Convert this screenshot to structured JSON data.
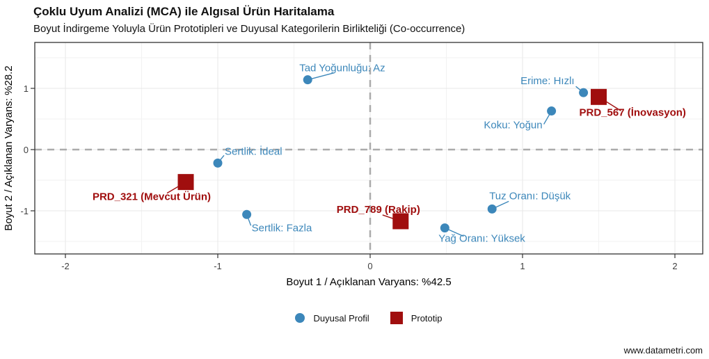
{
  "header": {
    "title": "Çoklu Uyum Analizi (MCA) ile Algısal Ürün Haritalama",
    "subtitle": "Boyut İndirgeme Yoluyla Ürün Prototipleri ve Duyusal Kategorilerin Birlikteliği (Co-occurrence)"
  },
  "watermark": "www.datametri.com",
  "colors": {
    "sensory": "#3c87ba",
    "prototype": "#a00e0e",
    "grid_major": "#e7e7e7",
    "grid_minor": "#f2f2f2",
    "reference_dash": "#ababab",
    "panel_border": "#333333",
    "tick_label": "#404040",
    "axis_title": "#000000"
  },
  "chart_data": {
    "type": "scatter",
    "title": "Çoklu Uyum Analizi (MCA) ile Algısal Ürün Haritalama",
    "subtitle": "Boyut İndirgeme Yoluyla Ürün Prototipleri ve Duyusal Kategorilerin Birlikteliği (Co-occurrence)",
    "xlabel": "Boyut 1 / Açıklanan Varyans: %42.5",
    "ylabel": "Boyut 2 / Açıklanan Varyans: %28.2",
    "xlim": [
      -2.2,
      2.18
    ],
    "ylim": [
      -1.7,
      1.75
    ],
    "xticks": [
      -2,
      -1,
      0,
      1,
      2
    ],
    "yticks": [
      -1,
      0,
      1
    ],
    "grid": {
      "major": true,
      "minor": true
    },
    "reference_lines": {
      "x": 0,
      "y": 0,
      "style": "dashed"
    },
    "legend_position": "bottom",
    "series": [
      {
        "name": "Duyusal Profil",
        "marker": "circle",
        "color": "#3c87ba",
        "points": [
          {
            "label": "Tad Yoğunluğu: Az",
            "x": -0.41,
            "y": 1.14,
            "anchor": "start",
            "label_offset": [
              -12,
              -12
            ],
            "leader": [
              38,
              -10
            ]
          },
          {
            "label": "Erime: Hızlı",
            "x": 1.4,
            "y": 0.93,
            "anchor": "end",
            "label_offset": [
              -13,
              -12
            ],
            "leader": [
              -11,
              -9
            ]
          },
          {
            "label": "Koku: Yoğun",
            "x": 1.19,
            "y": 0.63,
            "anchor": "end",
            "label_offset": [
              -13,
              25
            ],
            "leader": [
              -11,
              19
            ]
          },
          {
            "label": "Sertlik: İdeal",
            "x": -1.0,
            "y": -0.22,
            "anchor": "start",
            "label_offset": [
              10,
              -12
            ],
            "leader": [
              9,
              -11
            ]
          },
          {
            "label": "Sertlik: Fazla",
            "x": -0.81,
            "y": -1.06,
            "anchor": "start",
            "label_offset": [
              7,
              24
            ],
            "leader": [
              6,
              16
            ]
          },
          {
            "label": "Tuz Oranı: Düşük",
            "x": 0.8,
            "y": -0.97,
            "anchor": "start",
            "label_offset": [
              -4,
              -14
            ],
            "leader": [
              24,
              -11
            ]
          },
          {
            "label": "Yağ Oranı: Yüksek",
            "x": 0.49,
            "y": -1.28,
            "anchor": "start",
            "label_offset": [
              -9,
              20
            ],
            "leader": [
              27,
              12
            ]
          }
        ]
      },
      {
        "name": "Prototip",
        "marker": "square",
        "color": "#a00e0e",
        "points": [
          {
            "label": "PRD_567 (İnovasyon)",
            "x": 1.5,
            "y": 0.86,
            "anchor": "start",
            "label_offset": [
              -28,
              27
            ],
            "leader": [
              32,
              20
            ]
          },
          {
            "label": "PRD_321 (Mevcut Ürün)",
            "x": -1.21,
            "y": -0.53,
            "anchor": "end",
            "label_offset": [
              36,
              26
            ],
            "leader": [
              -27,
              16
            ]
          },
          {
            "label": "PRD_789 (Rakip)",
            "x": 0.2,
            "y": -1.17,
            "anchor": "middle",
            "label_offset": [
              -32,
              -12
            ],
            "leader": [
              -26,
              -9
            ]
          }
        ]
      }
    ]
  }
}
